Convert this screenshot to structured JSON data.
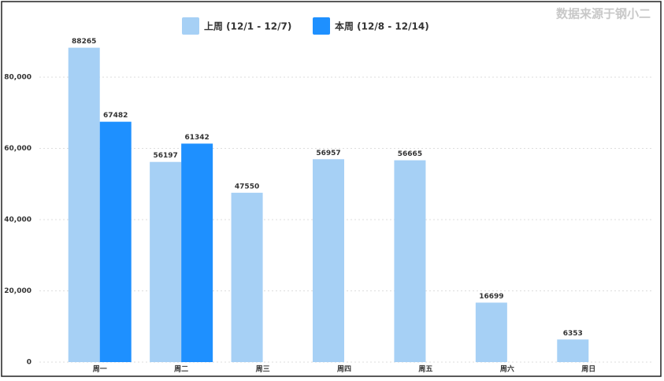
{
  "chart_data": {
    "type": "bar",
    "source": "数据来源于钢小二",
    "categories": [
      "周一",
      "周二",
      "周三",
      "周四",
      "周五",
      "周六",
      "周日"
    ],
    "series": [
      {
        "name": "上周 (12/1 - 12/7)",
        "color": "#a6d0f5",
        "values": [
          88265,
          56197,
          47550,
          56957,
          56665,
          16699,
          6353
        ]
      },
      {
        "name": "本周 (12/8 - 12/14)",
        "color": "#1e90ff",
        "values": [
          67482,
          61342,
          null,
          null,
          null,
          null,
          null
        ]
      }
    ],
    "ylim": [
      0,
      100000
    ],
    "yticks": [
      0,
      {
        "value": 20000,
        "label": "20,000"
      },
      {
        "value": 40000,
        "label": "40,000"
      },
      {
        "value": 60000,
        "label": "60,000"
      },
      {
        "value": 80000,
        "label": "80,000"
      }
    ],
    "grid": true,
    "legend": "top"
  }
}
